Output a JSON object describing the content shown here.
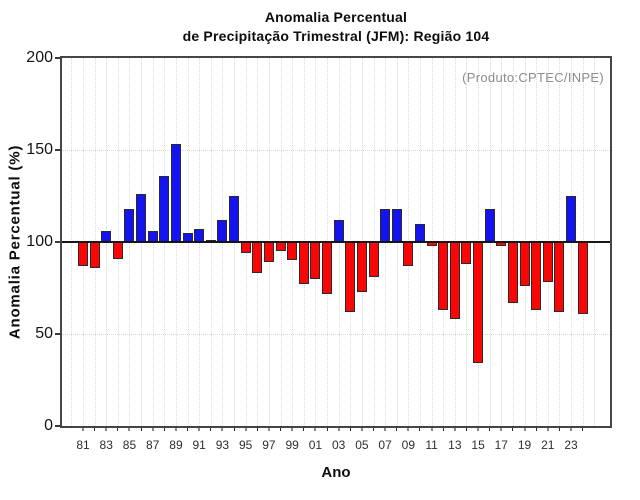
{
  "title": {
    "line1": "Anomalia Percentual",
    "line2": "de Precipitação Trimestral (JFM): Região 104"
  },
  "annotation": "(Produto:CPTEC/INPE)",
  "chart_data": {
    "type": "bar",
    "title": "Anomalia Percentual de Precipitação Trimestral (JFM): Região 104",
    "xlabel": "Ano",
    "ylabel": "Anomalia Percentual (%)",
    "ylim": [
      0,
      200
    ],
    "yticks": [
      0,
      50,
      100,
      150,
      200
    ],
    "baseline": 100,
    "hgrid_values": [
      50,
      150
    ],
    "grid": "dotted",
    "legend_position": "none",
    "years": [
      1981,
      1982,
      1983,
      1984,
      1985,
      1986,
      1987,
      1988,
      1989,
      1990,
      1991,
      1992,
      1993,
      1994,
      1995,
      1996,
      1997,
      1998,
      1999,
      2000,
      2001,
      2002,
      2003,
      2004,
      2005,
      2006,
      2007,
      2008,
      2009,
      2010,
      2011,
      2012,
      2013,
      2014,
      2015,
      2016,
      2017,
      2018,
      2019,
      2020,
      2021,
      2022,
      2023,
      2024
    ],
    "values": [
      87,
      86,
      106,
      91,
      118,
      126,
      106,
      136,
      153,
      105,
      107,
      100,
      112,
      125,
      94,
      83,
      89,
      95,
      90,
      77,
      80,
      72,
      112,
      62,
      73,
      81,
      118,
      118,
      87,
      110,
      98,
      63,
      58,
      88,
      34,
      118,
      98,
      67,
      76,
      63,
      78,
      62,
      125,
      61
    ],
    "xtick_labels": [
      "81",
      "83",
      "85",
      "87",
      "89",
      "91",
      "93",
      "95",
      "97",
      "99",
      "01",
      "03",
      "05",
      "07",
      "09",
      "11",
      "13",
      "15",
      "17",
      "19",
      "21",
      "23"
    ],
    "colors": {
      "above_baseline": "#1414f0",
      "below_baseline": "#f90707",
      "bar_border": "#2a2a2a",
      "neutral_bar": "#262626",
      "baseline_line": "#161616",
      "grid_line": "#d8d8d8",
      "frame": "#454545",
      "annotation_text": "#8c8c8c"
    }
  }
}
